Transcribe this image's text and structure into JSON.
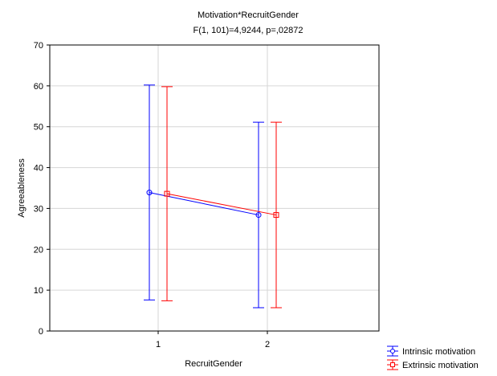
{
  "chart_data": {
    "type": "line",
    "title": "Motivation*RecruitGender",
    "subtitle": "F(1, 101)=4,9244, p=,02872",
    "xlabel": "RecruitGender",
    "ylabel": "Agreeableness",
    "categories": [
      "1",
      "2"
    ],
    "ylim": [
      0,
      70
    ],
    "yticks": [
      0,
      10,
      20,
      30,
      40,
      50,
      60,
      70
    ],
    "grid": true,
    "legend_position": "bottom-right",
    "series": [
      {
        "name": "Intrinsic motivation",
        "color": "#0000ff",
        "marker": "circle",
        "values": [
          33.9,
          28.4
        ],
        "ci_low": [
          7.6,
          5.7
        ],
        "ci_high": [
          60.2,
          51.1
        ]
      },
      {
        "name": "Extrinsic motivation",
        "color": "#ff0000",
        "marker": "square",
        "values": [
          33.6,
          28.4
        ],
        "ci_low": [
          7.4,
          5.7
        ],
        "ci_high": [
          59.8,
          51.1
        ]
      }
    ]
  }
}
